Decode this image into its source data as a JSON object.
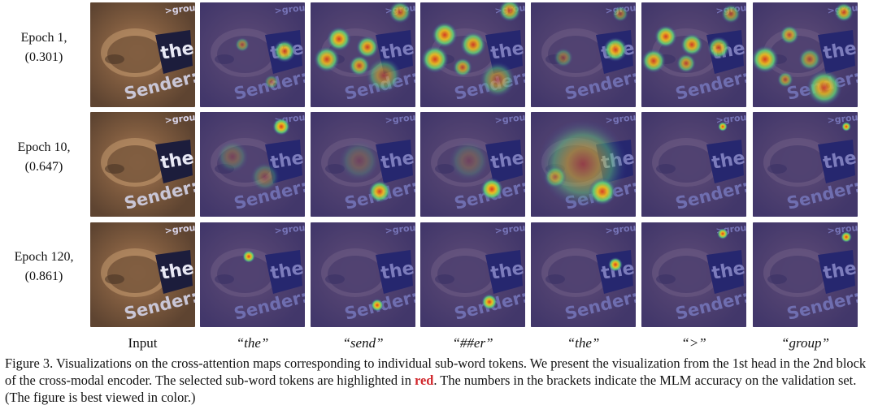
{
  "rows": [
    {
      "label_line1": "Epoch 1,",
      "label_line2": "(0.301)"
    },
    {
      "label_line1": "Epoch 10,",
      "label_line2": "(0.647)"
    },
    {
      "label_line1": "Epoch 120,",
      "label_line2": "(0.861)"
    }
  ],
  "columns": [
    "Input",
    "“the”",
    "“send”",
    "“##er”",
    "“the”",
    "“>”",
    "“group”"
  ],
  "input_image_text": {
    "top": ">group",
    "middle": "the",
    "bottom": "Sender:"
  },
  "caption": {
    "part1": "Figure 3. Visualizations on the cross-attention maps corresponding to individual sub-word tokens. We present the visualization from the 1st head in the 2nd block of the cross-modal encoder. The selected sub-word tokens are highlighted in ",
    "highlight": "red",
    "part2": ". The numbers in the brackets indicate the MLM accuracy on the validation set. (The figure is best viewed in color.)"
  },
  "colors": {
    "highlight": "#d0262b",
    "attention_low": "#3a3a9a",
    "attention_high": "#e23a18"
  }
}
